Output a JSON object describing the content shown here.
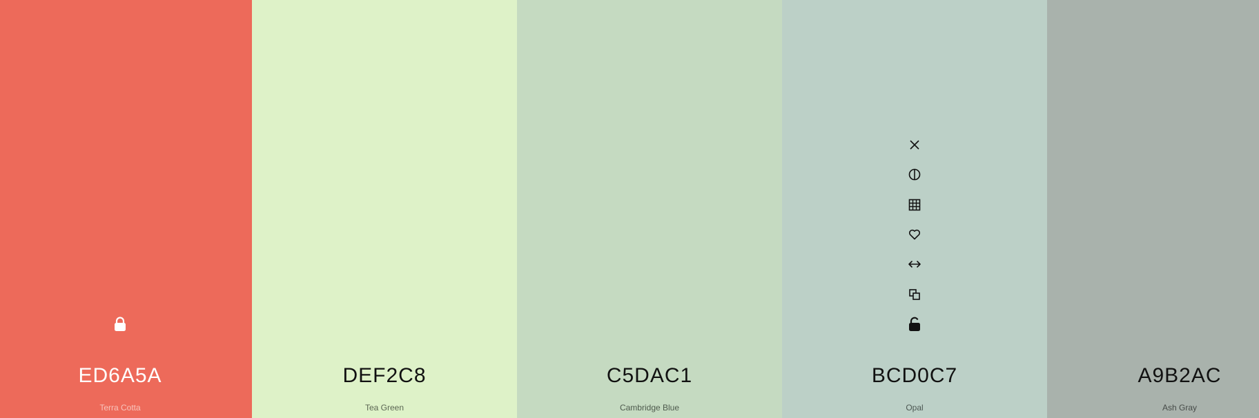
{
  "palette": {
    "swatches": [
      {
        "hex": "ED6A5A",
        "name": "Terra Cotta",
        "color": "#ED6A5A",
        "text_color": "#FFFFFF",
        "name_color": "#F8C5BD",
        "locked": true
      },
      {
        "hex": "DEF2C8",
        "name": "Tea Green",
        "color": "#DEF2C8",
        "text_color": "#111111",
        "name_color": "#5A6552",
        "locked": false
      },
      {
        "hex": "C5DAC1",
        "name": "Cambridge Blue",
        "color": "#C5DAC1",
        "text_color": "#111111",
        "name_color": "#4E5A4D",
        "locked": false
      },
      {
        "hex": "BCD0C7",
        "name": "Opal",
        "color": "#BCD0C7",
        "text_color": "#111111",
        "name_color": "#4C5752",
        "locked": false
      },
      {
        "hex": "A9B2AC",
        "name": "Ash Gray",
        "color": "#A9B2AC",
        "text_color": "#111111",
        "name_color": "#464B48",
        "locked": false
      }
    ],
    "hover_tools": [
      "close-icon",
      "contrast-icon",
      "shades-grid-icon",
      "heart-icon",
      "drag-arrows-icon",
      "copy-icon",
      "unlock-icon"
    ],
    "lock_icon": "lock-icon"
  }
}
